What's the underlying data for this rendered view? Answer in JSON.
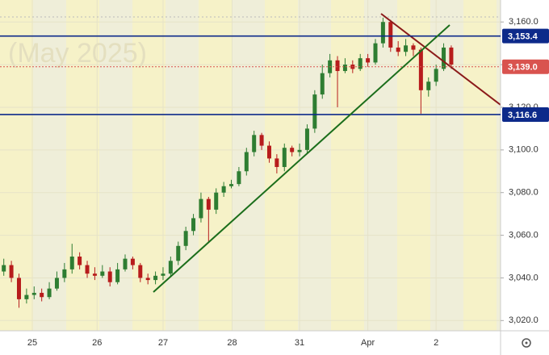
{
  "chart_data": {
    "type": "candlestick",
    "watermark": "(May 2025)",
    "x": [
      0,
      1,
      2,
      3,
      4,
      5,
      6,
      7,
      8,
      9,
      10,
      11,
      12,
      13,
      14,
      15,
      16,
      17,
      18,
      19,
      20,
      21,
      22,
      23,
      24,
      25,
      26,
      27,
      28,
      29,
      30,
      31,
      32,
      33,
      34,
      35,
      36,
      37,
      38,
      39,
      40,
      41,
      42,
      43,
      44,
      45,
      46,
      47,
      48,
      49,
      50,
      51,
      52,
      53,
      54,
      55,
      56,
      57,
      58,
      59
    ],
    "open": [
      3043,
      3046,
      3040,
      3030,
      3032,
      3033,
      3031,
      3035,
      3040,
      3044,
      3050,
      3046,
      3042,
      3041,
      3043,
      3038,
      3044,
      3049,
      3046,
      3040,
      3039,
      3041,
      3042,
      3048,
      3055,
      3062,
      3068,
      3077,
      3072,
      3080,
      3083,
      3084,
      3090,
      3099,
      3107,
      3102,
      3096,
      3092,
      3101,
      3099,
      3100,
      3110,
      3126,
      3136,
      3142,
      3137,
      3140,
      3138,
      3143,
      3141,
      3150,
      3160,
      3148,
      3146,
      3149,
      3147,
      3128,
      3132,
      3138,
      3148
    ],
    "high": [
      3049,
      3048,
      3042,
      3035,
      3036,
      3035,
      3038,
      3043,
      3047,
      3056,
      3052,
      3048,
      3045,
      3046,
      3045,
      3047,
      3051,
      3050,
      3047,
      3042,
      3043,
      3045,
      3050,
      3057,
      3064,
      3070,
      3080,
      3078,
      3082,
      3085,
      3086,
      3092,
      3101,
      3109,
      3108,
      3104,
      3098,
      3103,
      3102,
      3103,
      3112,
      3128,
      3140,
      3145,
      3144,
      3143,
      3142,
      3145,
      3145,
      3152,
      3162,
      3161,
      3151,
      3152,
      3150,
      3148,
      3134,
      3140,
      3150,
      3149
    ],
    "low": [
      3041,
      3038,
      3026,
      3028,
      3030,
      3029,
      3030,
      3034,
      3038,
      3042,
      3044,
      3040,
      3039,
      3040,
      3036,
      3037,
      3043,
      3044,
      3038,
      3037,
      3037,
      3039,
      3041,
      3046,
      3053,
      3060,
      3066,
      3057,
      3070,
      3078,
      3082,
      3083,
      3088,
      3097,
      3100,
      3094,
      3089,
      3090,
      3097,
      3097,
      3098,
      3108,
      3124,
      3134,
      3120,
      3136,
      3136,
      3137,
      3139,
      3140,
      3148,
      3146,
      3144,
      3144,
      3144,
      3117,
      3125,
      3130,
      3137,
      3138
    ],
    "close": [
      3046,
      3040,
      3030,
      3032,
      3033,
      3031,
      3035,
      3040,
      3044,
      3050,
      3046,
      3042,
      3041,
      3043,
      3038,
      3044,
      3049,
      3046,
      3040,
      3039,
      3041,
      3042,
      3048,
      3055,
      3062,
      3068,
      3077,
      3072,
      3080,
      3083,
      3084,
      3090,
      3099,
      3107,
      3102,
      3096,
      3092,
      3101,
      3099,
      3100,
      3110,
      3126,
      3136,
      3142,
      3137,
      3140,
      3138,
      3143,
      3141,
      3150,
      3160,
      3148,
      3146,
      3149,
      3147,
      3128,
      3132,
      3138,
      3148,
      3140
    ],
    "up_color": "#2e7d32",
    "down_color": "#b71c1c",
    "xlim": [
      -0.5,
      65.5
    ],
    "xticks": [
      {
        "value": 3.76,
        "label": "25"
      },
      {
        "value": 12.3,
        "label": "26"
      },
      {
        "value": 21.0,
        "label": "27"
      },
      {
        "value": 30.1,
        "label": "28"
      },
      {
        "value": 39.0,
        "label": "31"
      },
      {
        "value": 48.0,
        "label": "Apr"
      },
      {
        "value": 57.0,
        "label": "2"
      }
    ],
    "ylim": [
      3015.2,
      3170.3
    ],
    "yticks": [
      {
        "value": 3020,
        "label": "3,020.0"
      },
      {
        "value": 3040,
        "label": "3,040.0"
      },
      {
        "value": 3060,
        "label": "3,060.0"
      },
      {
        "value": 3080,
        "label": "3,080.0"
      },
      {
        "value": 3100,
        "label": "3,100.0"
      },
      {
        "value": 3120,
        "label": "3,120.0"
      },
      {
        "value": 3140,
        "label": "3,140.0"
      },
      {
        "value": 3160,
        "label": "3,160.0"
      }
    ],
    "levels": [
      {
        "value": 3153.4,
        "label": "3,153.4",
        "color": "#0d2a8a",
        "style": "solid"
      },
      {
        "value": 3116.6,
        "label": "3,116.6",
        "color": "#0d2a8a",
        "style": "solid"
      },
      {
        "value": 3139.0,
        "label": "3,139.0",
        "color": "#d9534f",
        "style": "dotted"
      }
    ]
  }
}
